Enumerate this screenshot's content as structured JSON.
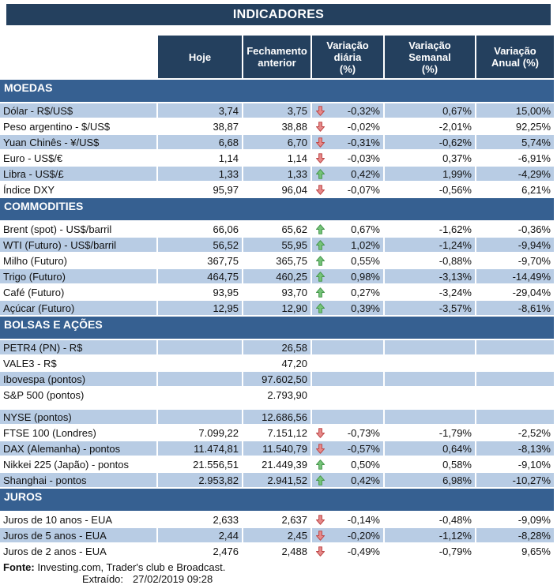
{
  "title": "INDICADORES",
  "columns": [
    "Hoje",
    "Fechamento\nanterior",
    "Variação diária\n(%)",
    "Variação Semanal\n(%)",
    "Variação\nAnual (%)"
  ],
  "sections": [
    {
      "name": "MOEDAS",
      "rows": [
        {
          "label": "Dólar - R$/US$",
          "hoje": "3,74",
          "fechamento": "3,75",
          "arrow": "down",
          "daily": "-0,32%",
          "weekly": "0,67%",
          "annual": "15,00%",
          "shade": "blue"
        },
        {
          "label": "Peso argentino - $/US$",
          "hoje": "38,87",
          "fechamento": "38,88",
          "arrow": "down",
          "daily": "-0,02%",
          "weekly": "-2,01%",
          "annual": "92,25%",
          "shade": "white"
        },
        {
          "label": "Yuan Chinês - ¥/US$",
          "hoje": "6,68",
          "fechamento": "6,70",
          "arrow": "down",
          "daily": "-0,31%",
          "weekly": "-0,62%",
          "annual": "5,74%",
          "shade": "blue"
        },
        {
          "label": "Euro - US$/€",
          "hoje": "1,14",
          "fechamento": "1,14",
          "arrow": "down",
          "daily": "-0,03%",
          "weekly": "0,37%",
          "annual": "-6,91%",
          "shade": "white"
        },
        {
          "label": "Libra - US$/£",
          "hoje": "1,33",
          "fechamento": "1,33",
          "arrow": "up",
          "daily": "0,42%",
          "weekly": "1,99%",
          "annual": "-4,29%",
          "shade": "blue"
        },
        {
          "label": "Índice DXY",
          "hoje": "95,97",
          "fechamento": "96,04",
          "arrow": "down",
          "daily": "-0,07%",
          "weekly": "-0,56%",
          "annual": "6,21%",
          "shade": "white"
        }
      ]
    },
    {
      "name": "COMMODITIES",
      "rows": [
        {
          "label": "Brent (spot) - US$/barril",
          "hoje": "66,06",
          "fechamento": "65,62",
          "arrow": "up",
          "daily": "0,67%",
          "weekly": "-1,62%",
          "annual": "-0,36%",
          "shade": "white"
        },
        {
          "label": "WTI (Futuro) - US$/barril",
          "hoje": "56,52",
          "fechamento": "55,95",
          "arrow": "up",
          "daily": "1,02%",
          "weekly": "-1,24%",
          "annual": "-9,94%",
          "shade": "blue"
        },
        {
          "label": "Milho (Futuro)",
          "hoje": "367,75",
          "fechamento": "365,75",
          "arrow": "up",
          "daily": "0,55%",
          "weekly": "-0,88%",
          "annual": "-9,70%",
          "shade": "white"
        },
        {
          "label": "Trigo (Futuro)",
          "hoje": "464,75",
          "fechamento": "460,25",
          "arrow": "up",
          "daily": "0,98%",
          "weekly": "-3,13%",
          "annual": "-14,49%",
          "shade": "blue"
        },
        {
          "label": "Café (Futuro)",
          "hoje": "93,95",
          "fechamento": "93,70",
          "arrow": "up",
          "daily": "0,27%",
          "weekly": "-3,24%",
          "annual": "-29,04%",
          "shade": "white"
        },
        {
          "label": "Açúcar (Futuro)",
          "hoje": "12,95",
          "fechamento": "12,90",
          "arrow": "up",
          "daily": "0,39%",
          "weekly": "-3,57%",
          "annual": "-8,61%",
          "shade": "blue"
        }
      ]
    },
    {
      "name": "BOLSAS E AÇÕES",
      "rows": [
        {
          "label": "PETR4 (PN) - R$",
          "hoje": "",
          "fechamento": "26,58",
          "arrow": "",
          "daily": "",
          "weekly": "",
          "annual": "",
          "shade": "blue"
        },
        {
          "label": "VALE3 - R$",
          "hoje": "",
          "fechamento": "47,20",
          "arrow": "",
          "daily": "",
          "weekly": "",
          "annual": "",
          "shade": "white"
        },
        {
          "label": "Ibovespa (pontos)",
          "hoje": "",
          "fechamento": "97.602,50",
          "arrow": "",
          "daily": "",
          "weekly": "",
          "annual": "",
          "shade": "blue"
        },
        {
          "label": "S&P 500 (pontos)",
          "hoje": "",
          "fechamento": "2.793,90",
          "arrow": "",
          "daily": "",
          "weekly": "",
          "annual": "",
          "shade": "white",
          "spacer_after": true
        },
        {
          "label": "NYSE (pontos)",
          "hoje": "",
          "fechamento": "12.686,56",
          "arrow": "",
          "daily": "",
          "weekly": "",
          "annual": "",
          "shade": "blue"
        },
        {
          "label": "FTSE 100 (Londres)",
          "hoje": "7.099,22",
          "fechamento": "7.151,12",
          "arrow": "down",
          "daily": "-0,73%",
          "weekly": "-1,79%",
          "annual": "-2,52%",
          "shade": "white"
        },
        {
          "label": "DAX (Alemanha) - pontos",
          "hoje": "11.474,81",
          "fechamento": "11.540,79",
          "arrow": "down",
          "daily": "-0,57%",
          "weekly": "0,64%",
          "annual": "-8,13%",
          "shade": "blue"
        },
        {
          "label": "Nikkei 225 (Japão) - pontos",
          "hoje": "21.556,51",
          "fechamento": "21.449,39",
          "arrow": "up",
          "daily": "0,50%",
          "weekly": "0,58%",
          "annual": "-9,10%",
          "shade": "white"
        },
        {
          "label": "Shanghai - pontos",
          "hoje": "2.953,82",
          "fechamento": "2.941,52",
          "arrow": "up",
          "daily": "0,42%",
          "weekly": "6,98%",
          "annual": "-10,27%",
          "shade": "blue"
        }
      ]
    },
    {
      "name": "JUROS",
      "rows": [
        {
          "label": "Juros de 10 anos - EUA",
          "hoje": "2,633",
          "fechamento": "2,637",
          "arrow": "down",
          "daily": "-0,14%",
          "weekly": "-0,48%",
          "annual": "-9,09%",
          "shade": "white"
        },
        {
          "label": "Juros de 5 anos - EUA",
          "hoje": "2,44",
          "fechamento": "2,45",
          "arrow": "down",
          "daily": "-0,20%",
          "weekly": "-1,12%",
          "annual": "-8,28%",
          "shade": "blue"
        },
        {
          "label": "Juros de 2 anos - EUA",
          "hoje": "2,476",
          "fechamento": "2,488",
          "arrow": "down",
          "daily": "-0,49%",
          "weekly": "-0,79%",
          "annual": "9,65%",
          "shade": "white"
        }
      ]
    }
  ],
  "footer": {
    "source_label": "Fonte:",
    "source_text": "Investing.com, Trader's club e Broadcast.",
    "extracted_label": "Extraído:",
    "extracted_value": "27/02/2019 09:28"
  },
  "colors": {
    "title_bg": "#24405E",
    "header_bg": "#24405E",
    "section_bg": "#366091",
    "stripe_blue": "#B8CCE4",
    "up_arrow_fill": "#76C479",
    "up_arrow_stroke": "#4A9950",
    "down_arrow_fill": "#E78A8A",
    "down_arrow_stroke": "#BF4B4B"
  }
}
